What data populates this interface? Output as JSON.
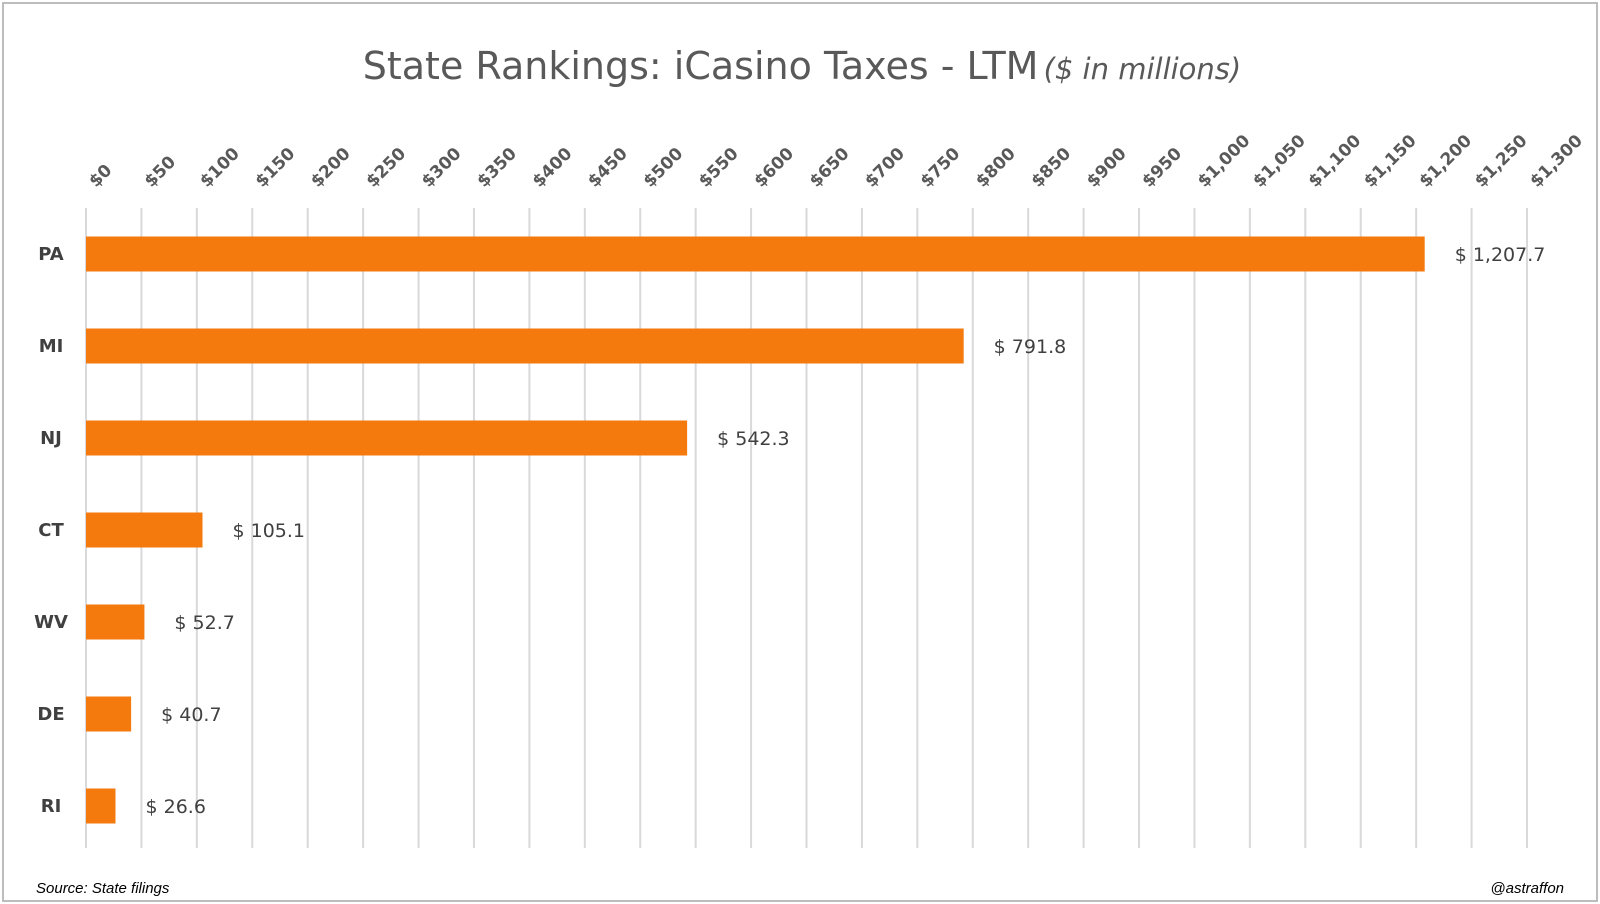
{
  "chart_data": {
    "type": "bar",
    "orientation": "horizontal",
    "title": "State Rankings: iCasino Taxes - LTM",
    "subtitle": "($ in millions)",
    "categories": [
      "PA",
      "MI",
      "NJ",
      "CT",
      "WV",
      "DE",
      "RI"
    ],
    "values": [
      1207.7,
      791.8,
      542.3,
      105.1,
      52.7,
      40.7,
      26.6
    ],
    "data_labels": [
      "$ 1,207.7",
      "$ 791.8",
      "$ 542.3",
      "$ 105.1",
      "$ 52.7",
      "$ 40.7",
      "$ 26.6"
    ],
    "xlim": [
      0,
      1300
    ],
    "x_ticks": [
      0,
      50,
      100,
      150,
      200,
      250,
      300,
      350,
      400,
      450,
      500,
      550,
      600,
      650,
      700,
      750,
      800,
      850,
      900,
      950,
      1000,
      1050,
      1100,
      1150,
      1200,
      1250,
      1300
    ],
    "x_tick_labels": [
      "$0",
      "$50",
      "$100",
      "$150",
      "$200",
      "$250",
      "$300",
      "$350",
      "$400",
      "$450",
      "$500",
      "$550",
      "$600",
      "$650",
      "$700",
      "$750",
      "$800",
      "$850",
      "$900",
      "$950",
      "$1,000",
      "$1,050",
      "$1,100",
      "$1,150",
      "$1,200",
      "$1,250",
      "$1,300"
    ],
    "x_axis_position": "top",
    "xlabel": "",
    "ylabel": "",
    "grid": true,
    "legend": "none",
    "bar_color": "#f57a0d",
    "grid_color": "#d9d9d9"
  },
  "footer": {
    "source": "Source: State filings",
    "handle": "@astraffon"
  }
}
